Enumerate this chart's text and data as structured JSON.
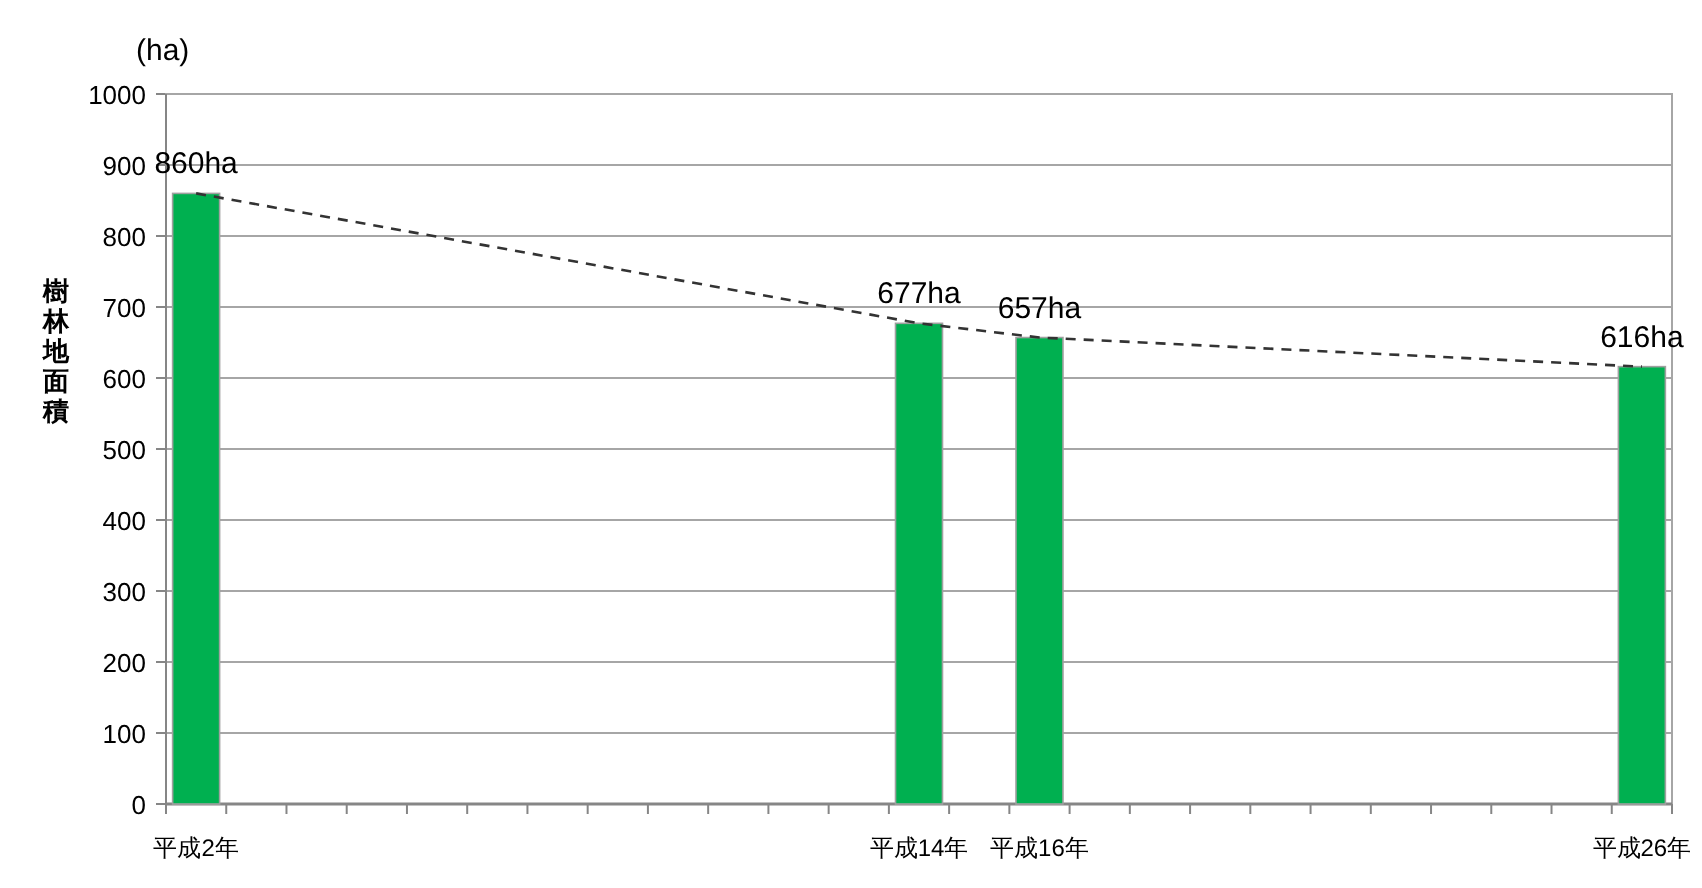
{
  "chart_data": {
    "type": "bar",
    "ylabel": "樹林地面積",
    "annotations": [
      "(ha)"
    ],
    "categories": [
      "平成2年",
      null,
      null,
      null,
      null,
      null,
      null,
      null,
      null,
      null,
      null,
      null,
      "平成14年",
      null,
      "平成16年",
      null,
      null,
      null,
      null,
      null,
      null,
      null,
      null,
      null,
      "平成26年"
    ],
    "series": [
      {
        "color": "#00b050",
        "values": [
          860,
          null,
          null,
          null,
          null,
          null,
          null,
          null,
          null,
          null,
          null,
          null,
          677,
          null,
          657,
          null,
          null,
          null,
          null,
          null,
          null,
          null,
          null,
          null,
          616
        ],
        "value_labels": [
          "860ha",
          null,
          null,
          null,
          null,
          null,
          null,
          null,
          null,
          null,
          null,
          null,
          "677ha",
          null,
          "657ha",
          null,
          null,
          null,
          null,
          null,
          null,
          null,
          null,
          null,
          "616ha"
        ]
      },
      {
        "type": "line",
        "color": "#333333",
        "line_style": "dashed",
        "marker": "none",
        "x": [
          "平成2年",
          "平成14年",
          "平成16年",
          "平成26年"
        ],
        "values": [
          860,
          677,
          657,
          616
        ]
      }
    ],
    "ylim": [
      0,
      1000
    ],
    "yticks": [
      0,
      100,
      200,
      300,
      400,
      500,
      600,
      700,
      800,
      900,
      1000
    ],
    "grid": "y"
  }
}
